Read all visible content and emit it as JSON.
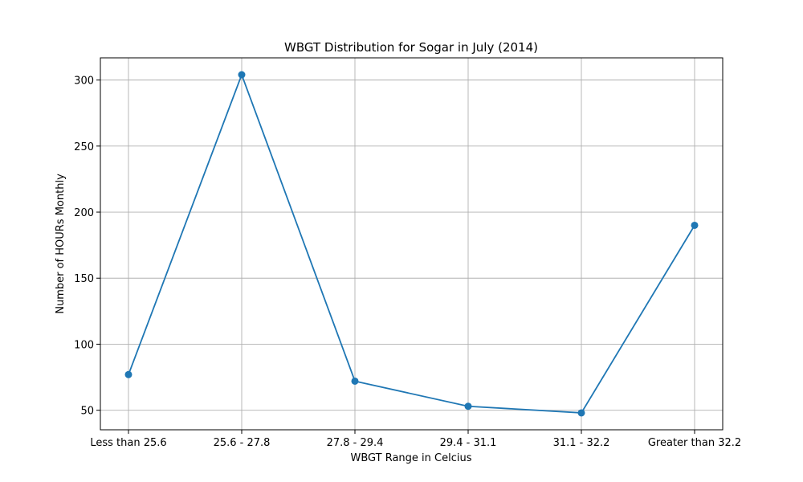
{
  "chart_data": {
    "type": "line",
    "title": "WBGT Distribution for Sogar in July (2014)",
    "xlabel": "WBGT Range in Celcius",
    "ylabel": "Number of HOURs Monthly",
    "categories": [
      "Less than 25.6",
      "25.6 - 27.8",
      "27.8 - 29.4",
      "29.4 - 31.1",
      "31.1 - 32.2",
      "Greater than 32.2"
    ],
    "series": [
      {
        "values": [
          77,
          304,
          72,
          53,
          48,
          190
        ],
        "color": "#1f77b4",
        "marker": "circle"
      }
    ],
    "ylim": [
      35.2,
      316.8
    ],
    "yticks": [
      50,
      100,
      150,
      200,
      250,
      300
    ],
    "grid": true,
    "legend": "none"
  }
}
